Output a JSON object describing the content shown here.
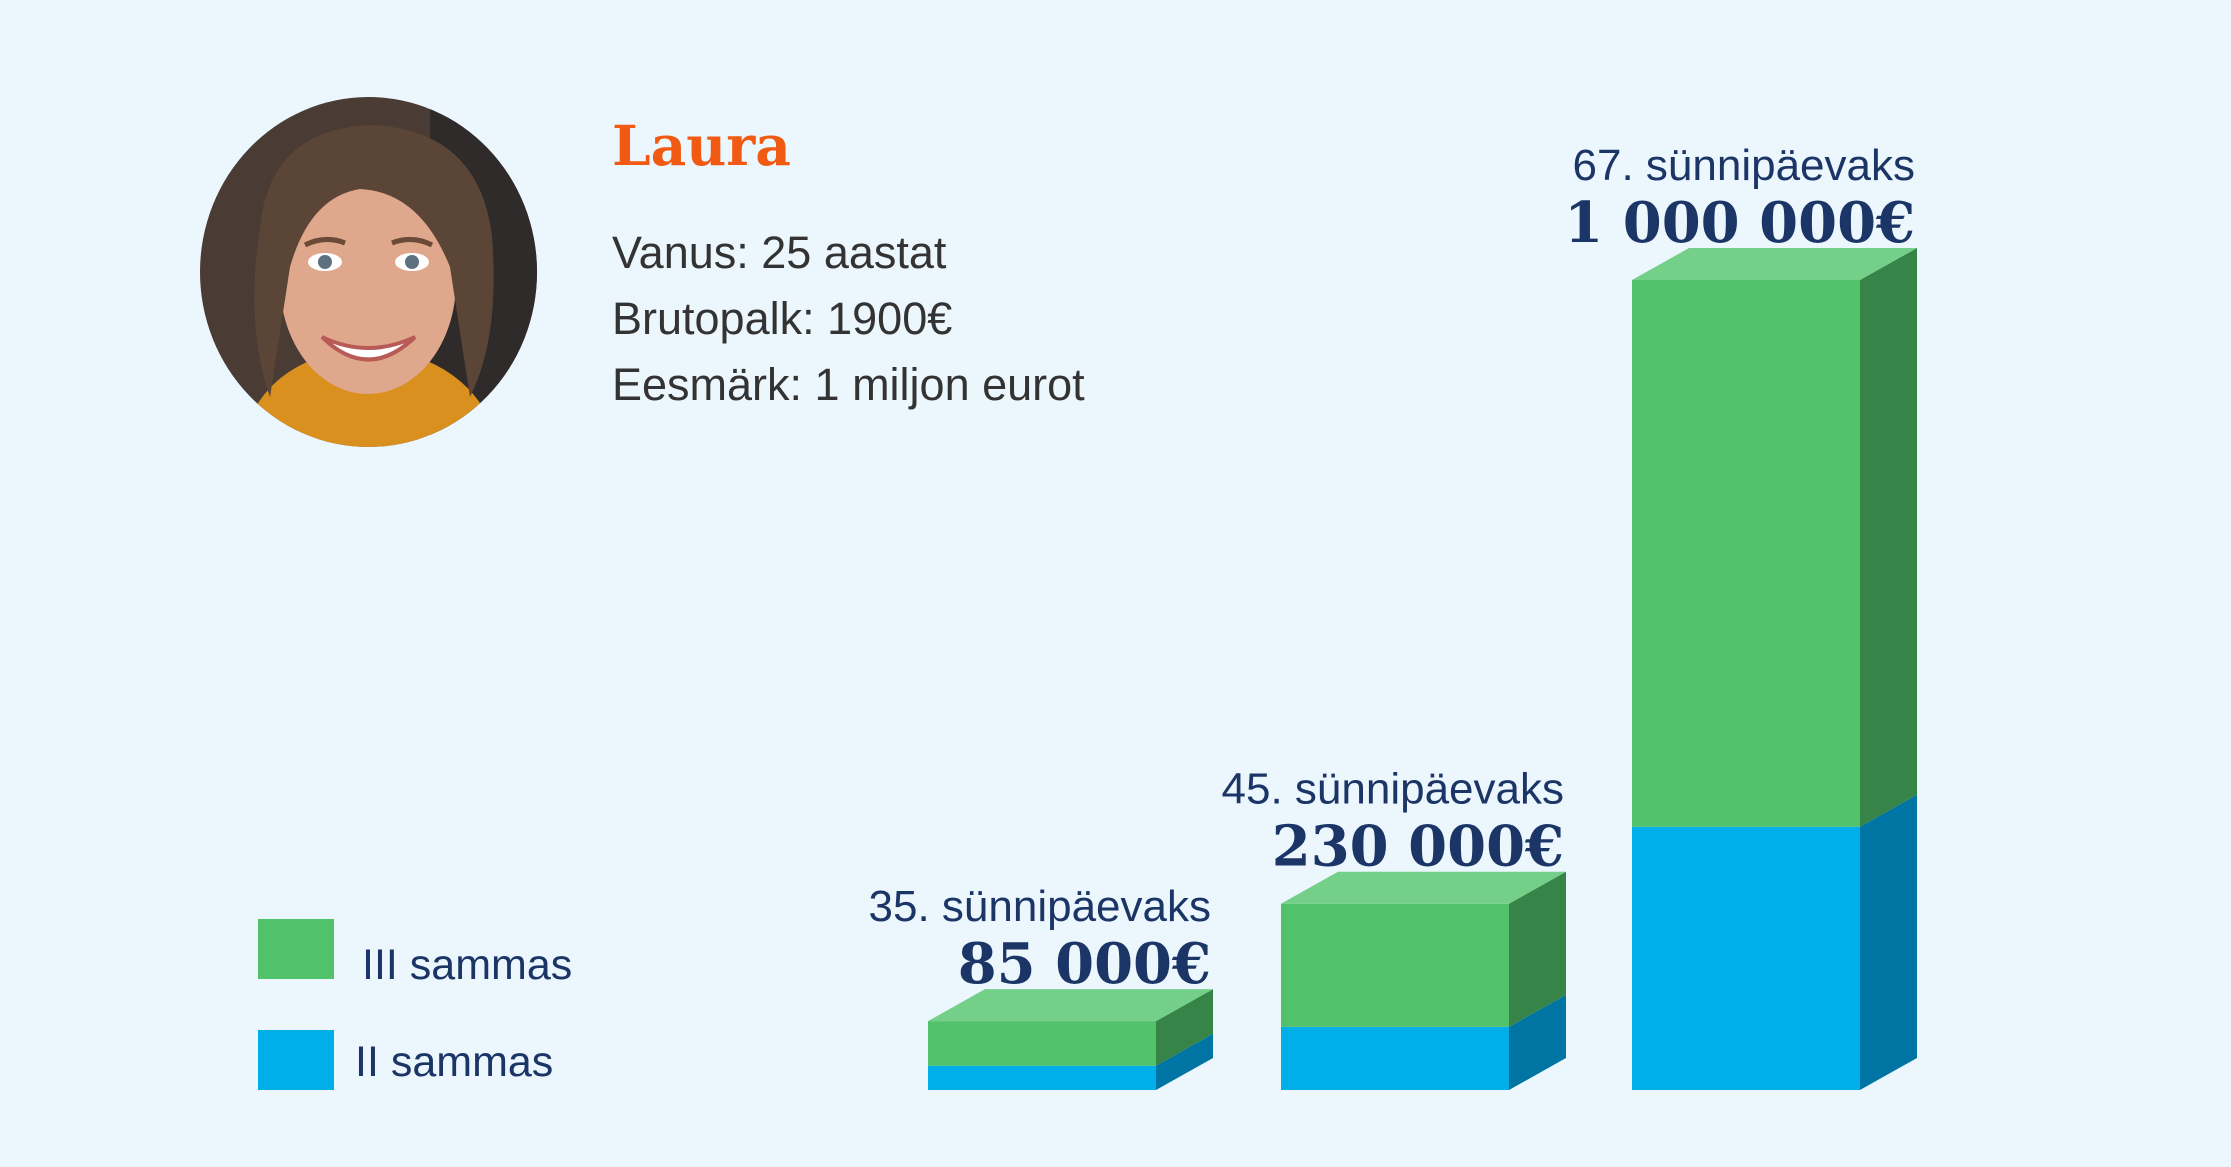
{
  "profile": {
    "name": "Laura",
    "age_line": "Vanus: 25 aastat",
    "salary_line": "Brutopalk: 1900€",
    "goal_line": "Eesmärk: 1 miljon eurot"
  },
  "colors": {
    "background": "#ecf6fd",
    "name": "#f05a12",
    "text_dark": "#333333",
    "text_navy": "#1b3566",
    "green_front": "#52c26a",
    "green_top": "#74cf88",
    "green_side": "#368447",
    "blue_front": "#00aee8",
    "blue_side": "#0075a3"
  },
  "chart_data": {
    "type": "bar",
    "stacked": true,
    "categories": [
      "35. sünnipäevaks",
      "45. sünnipäevaks",
      "67. sünnipäevaks"
    ],
    "totals_labels": [
      "85 000€",
      "230 000€",
      "1 000 000€"
    ],
    "totals": [
      85000,
      230000,
      1000000
    ],
    "series": [
      {
        "name": "II sammas",
        "values": [
          30000,
          78000,
          325000
        ]
      },
      {
        "name": "III sammas",
        "values": [
          55000,
          152000,
          675000
        ]
      }
    ],
    "ylim": [
      0,
      1000000
    ],
    "legend": "bottom-left"
  }
}
